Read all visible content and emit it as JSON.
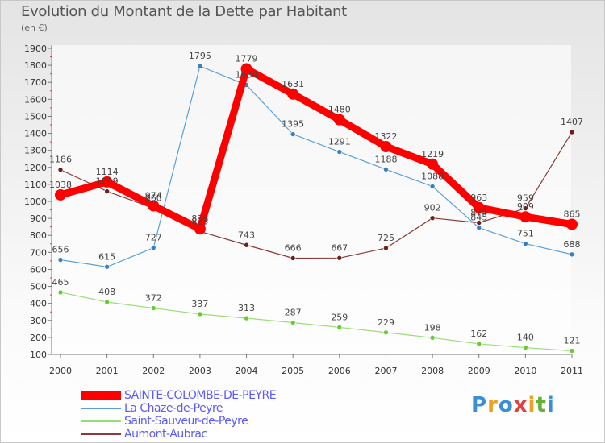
{
  "chart_data": {
    "type": "line",
    "title": "Evolution du Montant de la Dette par Habitant",
    "unit_label": "(en €)",
    "xlabel": "",
    "ylabel": "",
    "categories": [
      "2000",
      "2001",
      "2002",
      "2003",
      "2004",
      "2005",
      "2006",
      "2007",
      "2008",
      "2009",
      "2010",
      "2011"
    ],
    "y_ticks": [
      100,
      200,
      300,
      400,
      500,
      600,
      700,
      800,
      900,
      1000,
      1100,
      1200,
      1300,
      1400,
      1500,
      1600,
      1700,
      1800,
      1900
    ],
    "ylim": [
      100,
      1900
    ],
    "grid": false,
    "legend_position": "bottom-left",
    "series": [
      {
        "name": "SAINTE-COLOMBE-DE-PEYRE",
        "color": "#ff0000",
        "point_color": "#ff0000",
        "emphasis": true,
        "values": [
          1038,
          1114,
          974,
          838,
          1779,
          1631,
          1480,
          1322,
          1219,
          963,
          909,
          865
        ],
        "labels": [
          "1038",
          "1114",
          "974",
          "838",
          "1779",
          "1631",
          "1480",
          "1322",
          "1219",
          "963",
          "909",
          "865"
        ]
      },
      {
        "name": "La Chaze-de-Peyre",
        "color": "#5aa0d8",
        "point_color": "#3a7fc0",
        "values": [
          656,
          615,
          727,
          1795,
          1684,
          1395,
          1291,
          1188,
          1088,
          845,
          751,
          688
        ],
        "labels": [
          "656",
          "615",
          "727",
          "1795",
          "1684",
          "1395",
          "1291",
          "1188",
          "1088",
          "845",
          "751",
          "688"
        ]
      },
      {
        "name": "Saint-Sauveur-de-Peyre",
        "color": "#99dd77",
        "point_color": "#66cc33",
        "values": [
          465,
          408,
          372,
          337,
          313,
          287,
          259,
          229,
          198,
          162,
          140,
          121
        ],
        "labels": [
          "465",
          "408",
          "372",
          "337",
          "313",
          "287",
          "259",
          "229",
          "198",
          "162",
          "140",
          "121"
        ]
      },
      {
        "name": "Aumont-Aubrac",
        "color": "#8b3a3a",
        "point_color": "#6b1f1f",
        "values": [
          1186,
          1059,
          960,
          823,
          743,
          666,
          667,
          725,
          902,
          874,
          959,
          1407
        ],
        "labels": [
          "1186",
          "1059",
          "960",
          "823",
          "743",
          "666",
          "667",
          "725",
          "902",
          "874",
          "959",
          "1407"
        ]
      }
    ]
  },
  "brand": {
    "letters": [
      "P",
      "r",
      "o",
      "x",
      "i",
      "t",
      "i"
    ],
    "colors": [
      "#3b8fd6",
      "#f0a020",
      "#3b8fd6",
      "#e04040",
      "#f0a020",
      "#66b033",
      "#3b8fd6"
    ]
  }
}
